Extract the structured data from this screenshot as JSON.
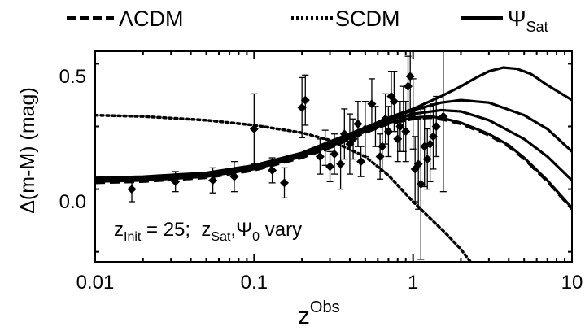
{
  "chart_data": {
    "type": "scatter",
    "x_scale": "log",
    "xlim": [
      0.01,
      10
    ],
    "ylim": [
      -0.24,
      0.6
    ],
    "x_ticks": [
      {
        "value": 0.01,
        "label": "0.01"
      },
      {
        "value": 0.1,
        "label": "0.1"
      },
      {
        "value": 1,
        "label": "1"
      },
      {
        "value": 10,
        "label": "10"
      }
    ],
    "y_ticks": [
      {
        "value": 0.0,
        "label": "0.0"
      },
      {
        "value": 0.5,
        "label": "0.5"
      }
    ],
    "xlabel": {
      "main": "z",
      "sup": "Obs"
    },
    "ylabel": "Δ(m-M) (mag)",
    "legend": [
      {
        "label_main": "ΛCDM",
        "label_sub": "",
        "dash": "dashed"
      },
      {
        "label_main": "SCDM",
        "label_sub": "",
        "dash": "dotted"
      },
      {
        "label_main": "Ψ",
        "label_sub": "Sat",
        "dash": "solid"
      }
    ],
    "legend_position": "top-center (above plot)",
    "annotation": {
      "z_letter": "z",
      "init_sub": "Init",
      "init_text": " = 25;  ",
      "sat_sub": "Sat",
      "comma": ",",
      "psi": "Ψ",
      "psi_sub": "0",
      "tail": " vary"
    },
    "series": [
      {
        "name": "ΛCDM",
        "style": "dashed",
        "points": [
          [
            0.01,
            0.075
          ],
          [
            0.02,
            0.08
          ],
          [
            0.05,
            0.095
          ],
          [
            0.1,
            0.125
          ],
          [
            0.2,
            0.175
          ],
          [
            0.3,
            0.215
          ],
          [
            0.5,
            0.275
          ],
          [
            0.7,
            0.31
          ],
          [
            1.0,
            0.33
          ],
          [
            1.3,
            0.335
          ],
          [
            1.6,
            0.325
          ],
          [
            2,
            0.31
          ],
          [
            3,
            0.265
          ],
          [
            4,
            0.22
          ],
          [
            5,
            0.17
          ],
          [
            7,
            0.08
          ],
          [
            10,
            -0.03
          ]
        ]
      },
      {
        "name": "SCDM",
        "style": "dotted",
        "points": [
          [
            0.01,
            0.345
          ],
          [
            0.02,
            0.34
          ],
          [
            0.05,
            0.325
          ],
          [
            0.1,
            0.305
          ],
          [
            0.2,
            0.275
          ],
          [
            0.3,
            0.245
          ],
          [
            0.5,
            0.18
          ],
          [
            0.7,
            0.105
          ],
          [
            1.0,
            0.0
          ],
          [
            1.3,
            -0.07
          ],
          [
            1.6,
            -0.125
          ],
          [
            2.0,
            -0.19
          ],
          [
            2.3,
            -0.24
          ]
        ]
      },
      {
        "name": "Ψ_Sat curve 1",
        "style": "solid",
        "points": [
          [
            0.01,
            0.08
          ],
          [
            0.02,
            0.085
          ],
          [
            0.05,
            0.1
          ],
          [
            0.1,
            0.13
          ],
          [
            0.2,
            0.18
          ],
          [
            0.3,
            0.22
          ],
          [
            0.5,
            0.28
          ],
          [
            0.7,
            0.315
          ],
          [
            1.0,
            0.335
          ],
          [
            1.3,
            0.34
          ],
          [
            1.6,
            0.33
          ],
          [
            2,
            0.315
          ],
          [
            3,
            0.27
          ],
          [
            4,
            0.225
          ],
          [
            5,
            0.175
          ],
          [
            7,
            0.085
          ],
          [
            10,
            -0.025
          ]
        ]
      },
      {
        "name": "Ψ_Sat curve 2",
        "style": "solid",
        "points": [
          [
            0.01,
            0.085
          ],
          [
            0.02,
            0.09
          ],
          [
            0.05,
            0.105
          ],
          [
            0.1,
            0.135
          ],
          [
            0.2,
            0.185
          ],
          [
            0.3,
            0.225
          ],
          [
            0.5,
            0.285
          ],
          [
            0.7,
            0.325
          ],
          [
            1.0,
            0.35
          ],
          [
            1.5,
            0.365
          ],
          [
            2,
            0.36
          ],
          [
            3,
            0.325
          ],
          [
            5,
            0.25
          ],
          [
            7,
            0.18
          ],
          [
            10,
            0.085
          ]
        ]
      },
      {
        "name": "Ψ_Sat curve 3",
        "style": "solid",
        "points": [
          [
            0.01,
            0.09
          ],
          [
            0.02,
            0.095
          ],
          [
            0.05,
            0.11
          ],
          [
            0.1,
            0.14
          ],
          [
            0.2,
            0.19
          ],
          [
            0.3,
            0.235
          ],
          [
            0.5,
            0.29
          ],
          [
            0.7,
            0.33
          ],
          [
            1.0,
            0.365
          ],
          [
            1.5,
            0.395
          ],
          [
            2,
            0.405
          ],
          [
            3,
            0.395
          ],
          [
            5,
            0.345
          ],
          [
            7,
            0.29
          ],
          [
            10,
            0.2
          ]
        ]
      },
      {
        "name": "Ψ_Sat curve 4",
        "style": "solid",
        "points": [
          [
            0.01,
            0.095
          ],
          [
            0.02,
            0.1
          ],
          [
            0.05,
            0.115
          ],
          [
            0.1,
            0.145
          ],
          [
            0.2,
            0.195
          ],
          [
            0.3,
            0.24
          ],
          [
            0.5,
            0.295
          ],
          [
            0.7,
            0.335
          ],
          [
            1.0,
            0.37
          ],
          [
            1.5,
            0.42
          ],
          [
            2,
            0.46
          ],
          [
            2.5,
            0.495
          ],
          [
            3,
            0.52
          ],
          [
            3.7,
            0.535
          ],
          [
            4.5,
            0.53
          ],
          [
            5.5,
            0.51
          ],
          [
            7,
            0.465
          ],
          [
            10,
            0.405
          ]
        ]
      }
    ],
    "points": [
      {
        "x": 0.017,
        "y": 0.05,
        "err": 0.05
      },
      {
        "x": 0.032,
        "y": 0.08,
        "err": 0.04
      },
      {
        "x": 0.055,
        "y": 0.085,
        "err": 0.05
      },
      {
        "x": 0.075,
        "y": 0.1,
        "err": 0.06
      },
      {
        "x": 0.1,
        "y": 0.29,
        "err": 0.14
      },
      {
        "x": 0.13,
        "y": 0.125,
        "err": 0.05
      },
      {
        "x": 0.155,
        "y": 0.075,
        "err": 0.06
      },
      {
        "x": 0.2,
        "y": 0.375,
        "err": 0.12
      },
      {
        "x": 0.21,
        "y": 0.405,
        "err": 0.1
      },
      {
        "x": 0.26,
        "y": 0.18,
        "err": 0.07
      },
      {
        "x": 0.28,
        "y": 0.215,
        "err": 0.07
      },
      {
        "x": 0.3,
        "y": 0.14,
        "err": 0.06
      },
      {
        "x": 0.32,
        "y": 0.19,
        "err": 0.08
      },
      {
        "x": 0.35,
        "y": 0.15,
        "err": 0.1
      },
      {
        "x": 0.37,
        "y": 0.27,
        "err": 0.1
      },
      {
        "x": 0.4,
        "y": 0.23,
        "err": 0.12
      },
      {
        "x": 0.42,
        "y": 0.25,
        "err": 0.08
      },
      {
        "x": 0.45,
        "y": 0.31,
        "err": 0.09
      },
      {
        "x": 0.47,
        "y": 0.16,
        "err": 0.06
      },
      {
        "x": 0.5,
        "y": 0.29,
        "err": 0.11
      },
      {
        "x": 0.55,
        "y": 0.39,
        "err": 0.1
      },
      {
        "x": 0.58,
        "y": 0.3,
        "err": 0.08
      },
      {
        "x": 0.62,
        "y": 0.18,
        "err": 0.09
      },
      {
        "x": 0.64,
        "y": 0.22,
        "err": 0.1
      },
      {
        "x": 0.67,
        "y": 0.33,
        "err": 0.1
      },
      {
        "x": 0.7,
        "y": 0.28,
        "err": 0.1
      },
      {
        "x": 0.73,
        "y": 0.42,
        "err": 0.1
      },
      {
        "x": 0.76,
        "y": 0.4,
        "err": 0.12
      },
      {
        "x": 0.8,
        "y": 0.25,
        "err": 0.09
      },
      {
        "x": 0.83,
        "y": 0.3,
        "err": 0.1
      },
      {
        "x": 0.87,
        "y": 0.33,
        "err": 0.13
      },
      {
        "x": 0.9,
        "y": 0.28,
        "err": 0.12
      },
      {
        "x": 0.93,
        "y": 0.46,
        "err": 0.12
      },
      {
        "x": 0.96,
        "y": 0.5,
        "err": 0.16
      },
      {
        "x": 1.0,
        "y": 0.35,
        "err": 0.14
      },
      {
        "x": 1.03,
        "y": 0.13,
        "err": 0.13
      },
      {
        "x": 1.08,
        "y": 0.15,
        "err": 0.18
      },
      {
        "x": 1.12,
        "y": 0.07,
        "err": 0.3
      },
      {
        "x": 1.18,
        "y": 0.22,
        "err": 0.16
      },
      {
        "x": 1.23,
        "y": 0.17,
        "err": 0.12
      },
      {
        "x": 1.28,
        "y": 0.23,
        "err": 0.15
      },
      {
        "x": 1.34,
        "y": 0.26,
        "err": 0.13
      },
      {
        "x": 1.4,
        "y": 0.3,
        "err": 0.12
      },
      {
        "x": 1.55,
        "y": 0.34,
        "err": 0.3
      }
    ]
  }
}
